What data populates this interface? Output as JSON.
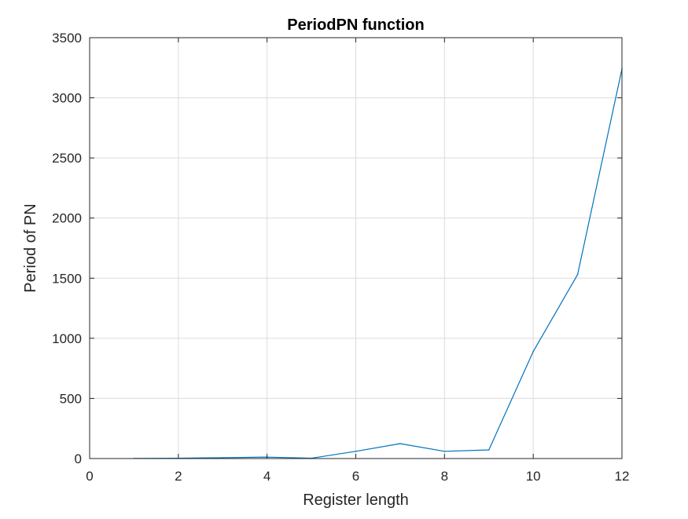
{
  "chart_data": {
    "type": "line",
    "title": "PeriodPN function",
    "xlabel": "Register length",
    "ylabel": "Period of PN",
    "xlim": [
      0,
      12
    ],
    "ylim": [
      0,
      3500
    ],
    "xticks": [
      0,
      2,
      4,
      6,
      8,
      10,
      12
    ],
    "yticks": [
      0,
      500,
      1000,
      1500,
      2000,
      2500,
      3000,
      3500
    ],
    "grid": true,
    "series": [
      {
        "color": "#0072bd",
        "x": [
          1,
          2,
          3,
          4,
          5,
          6,
          7,
          8,
          9,
          10,
          11,
          12
        ],
        "values": [
          1,
          3,
          7,
          12,
          3,
          60,
          124,
          60,
          72,
          890,
          1530,
          3240
        ]
      }
    ]
  },
  "colors": {
    "axis": "#262626",
    "grid": "#dcdcdc",
    "line": "#0072bd"
  }
}
